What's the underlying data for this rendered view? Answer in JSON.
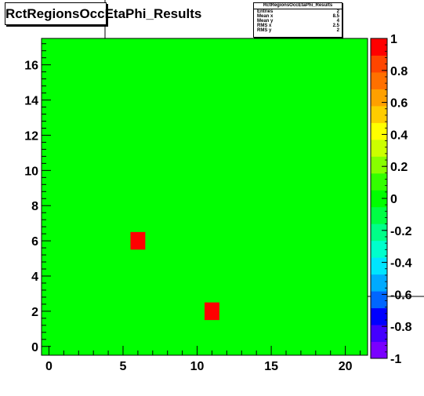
{
  "title": "RctRegionsOccEtaPhi_Results",
  "stats_box": {
    "title": "RctRegionsOccEtaPhi_Results",
    "rows": [
      {
        "label": "Entries",
        "value": "2"
      },
      {
        "label": "Mean x",
        "value": "8.5"
      },
      {
        "label": "Mean y",
        "value": "4"
      },
      {
        "label": "RMS x",
        "value": "2.5"
      },
      {
        "label": "RMS y",
        "value": "2"
      }
    ]
  },
  "colors": {
    "background_cell": "#00ff00",
    "hot_cell": "#ff0000"
  },
  "chart_data": {
    "type": "heatmap",
    "title": "RctRegionsOccEtaPhi_Results",
    "xlabel": "",
    "ylabel": "",
    "xlim": [
      -0.5,
      21.5
    ],
    "ylim": [
      -0.5,
      17.5
    ],
    "x_ticks": [
      0,
      5,
      10,
      15,
      20
    ],
    "x_tick_labels": [
      "0",
      "5",
      "10",
      "15",
      "20"
    ],
    "y_ticks": [
      0,
      2,
      4,
      6,
      8,
      10,
      12,
      14,
      16
    ],
    "y_tick_labels": [
      "0",
      "2",
      "4",
      "6",
      "8",
      "10",
      "12",
      "14",
      "16"
    ],
    "default_value": 0,
    "cells": [
      {
        "x": 6,
        "y": 6,
        "value": 1
      },
      {
        "x": 11,
        "y": 2,
        "value": 1
      }
    ],
    "z_range": [
      -1,
      1
    ],
    "colorbar": {
      "tick_values": [
        1,
        0.8,
        0.6,
        0.4,
        0.2,
        0,
        -0.2,
        -0.4,
        -0.6,
        -0.8,
        -1
      ],
      "tick_labels": [
        "1",
        "0.8",
        "0.6",
        "0.4",
        "0.2",
        "0",
        "-0.2",
        "-0.4",
        "-0.6",
        "-0.8",
        "-1"
      ],
      "palette": [
        "#7a00ff",
        "#4400ff",
        "#0000ff",
        "#0066ff",
        "#00aaff",
        "#00e5ff",
        "#00ffcc",
        "#00ff88",
        "#00ff44",
        "#00ff00",
        "#33ff00",
        "#88ff00",
        "#ccff00",
        "#ffff00",
        "#ffcc00",
        "#ffa000",
        "#ff7000",
        "#ff4500",
        "#ff0000"
      ]
    }
  }
}
